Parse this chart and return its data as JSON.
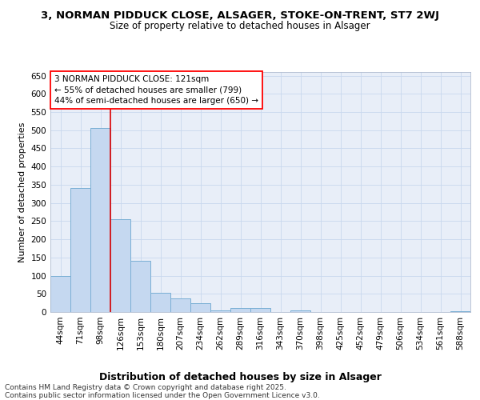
{
  "title1": "3, NORMAN PIDDUCK CLOSE, ALSAGER, STOKE-ON-TRENT, ST7 2WJ",
  "title2": "Size of property relative to detached houses in Alsager",
  "xlabel": "Distribution of detached houses by size in Alsager",
  "ylabel": "Number of detached properties",
  "bar_labels": [
    "44sqm",
    "71sqm",
    "98sqm",
    "126sqm",
    "153sqm",
    "180sqm",
    "207sqm",
    "234sqm",
    "262sqm",
    "289sqm",
    "316sqm",
    "343sqm",
    "370sqm",
    "398sqm",
    "425sqm",
    "452sqm",
    "479sqm",
    "506sqm",
    "534sqm",
    "561sqm",
    "588sqm"
  ],
  "bar_values": [
    100,
    340,
    507,
    255,
    140,
    53,
    38,
    25,
    5,
    10,
    10,
    0,
    5,
    0,
    0,
    0,
    0,
    0,
    0,
    0,
    3
  ],
  "bar_color": "#c5d8f0",
  "bar_edge_color": "#7aafd4",
  "grid_color": "#c8d8ee",
  "background_color": "#e8eef8",
  "vline_color": "#dd0000",
  "annotation_text_line1": "3 NORMAN PIDDUCK CLOSE: 121sqm",
  "annotation_text_line2": "← 55% of detached houses are smaller (799)",
  "annotation_text_line3": "44% of semi-detached houses are larger (650) →",
  "footnote": "Contains HM Land Registry data © Crown copyright and database right 2025.\nContains public sector information licensed under the Open Government Licence v3.0.",
  "ylim": [
    0,
    660
  ],
  "yticks": [
    0,
    50,
    100,
    150,
    200,
    250,
    300,
    350,
    400,
    450,
    500,
    550,
    600,
    650
  ],
  "title1_fontsize": 9.5,
  "title2_fontsize": 8.5,
  "xlabel_fontsize": 9,
  "ylabel_fontsize": 8,
  "tick_fontsize": 7.5,
  "annotation_fontsize": 7.5,
  "footnote_fontsize": 6.5
}
